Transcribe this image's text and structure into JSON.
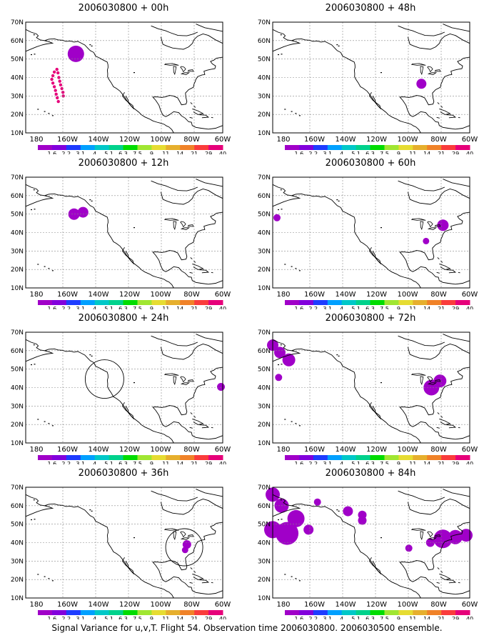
{
  "lat_labels": [
    "70N",
    "60N",
    "50N",
    "40N",
    "30N",
    "20N",
    "10N"
  ],
  "lon_labels": [
    "180",
    "160W",
    "140W",
    "120W",
    "100W",
    "80W",
    "60W"
  ],
  "colorbar": {
    "colors": [
      "#a000c8",
      "#8200dc",
      "#1e3cff",
      "#00a0ff",
      "#00c8c8",
      "#00d28c",
      "#00dc00",
      "#a0e632",
      "#e6dc32",
      "#e6af2d",
      "#f08228",
      "#fa3c3c",
      "#e6007a"
    ],
    "labels": [
      "1.6",
      "2.2",
      "3.1",
      "4",
      "5.1",
      "6.3",
      "7.5",
      "9",
      "11",
      "14",
      "21",
      "29",
      "40"
    ]
  },
  "panels": [
    {
      "title": "2006030800 + 00h"
    },
    {
      "title": "2006030800 + 48h"
    },
    {
      "title": "2006030800 + 12h"
    },
    {
      "title": "2006030800 + 60h"
    },
    {
      "title": "2006030800 + 24h"
    },
    {
      "title": "2006030800 + 72h"
    },
    {
      "title": "2006030800 + 36h"
    },
    {
      "title": "2006030800 + 84h"
    }
  ],
  "footer": "Signal Variance for u,v,T. Flight 54. Observation time 2006030800. 2006030500 ensemble."
}
